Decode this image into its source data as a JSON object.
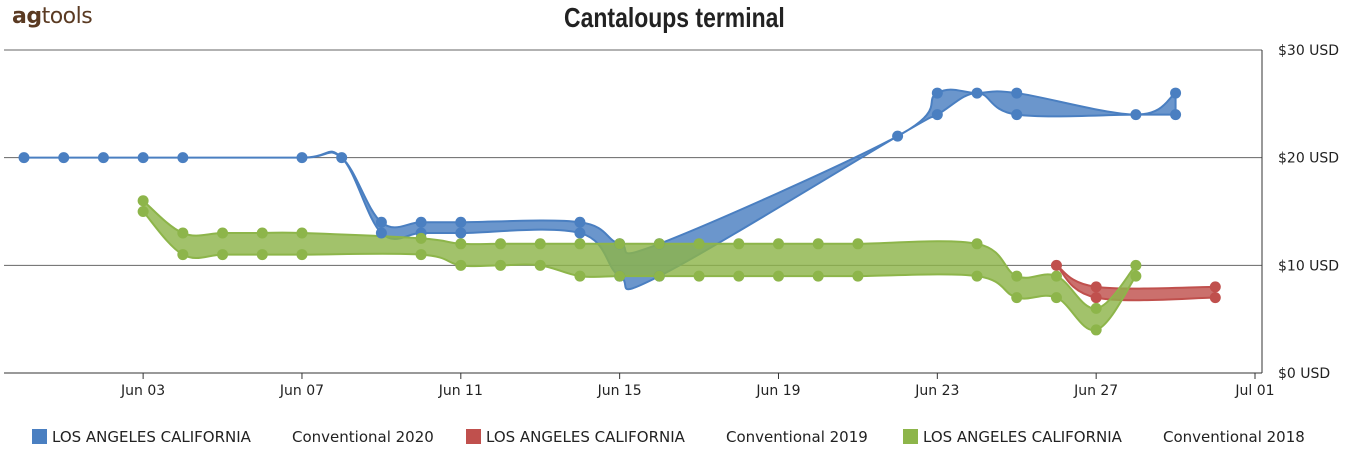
{
  "logo": {
    "ag": "ag",
    "tools": "tools"
  },
  "chart_data": {
    "type": "area",
    "title": "Cantaloups terminal",
    "ylim": [
      0,
      30
    ],
    "y_ticks": [
      0,
      10,
      20,
      30
    ],
    "y_tick_labels": [
      "$0 USD",
      "$10 USD",
      "$20 USD",
      "$30 USD"
    ],
    "x_range": [
      "2020-05-31",
      "2020-07-01"
    ],
    "x_ticks": [
      "2020-06-03",
      "2020-06-07",
      "2020-06-11",
      "2020-06-15",
      "2020-06-19",
      "2020-06-23",
      "2020-06-27",
      "2020-07-01"
    ],
    "x_tick_labels": [
      "Jun 03",
      "Jun 07",
      "Jun 11",
      "Jun 15",
      "Jun 19",
      "Jun 23",
      "Jun 27",
      "Jul 01"
    ],
    "grid": true,
    "legend_position": "bottom",
    "series": [
      {
        "label": "LOS ANGELES CALIFORNIA",
        "sub": "Conventional 2020",
        "color": "#4a7fc1",
        "points": [
          {
            "x": "2020-05-31",
            "low": 20,
            "high": 20
          },
          {
            "x": "2020-06-01",
            "low": 20,
            "high": 20
          },
          {
            "x": "2020-06-02",
            "low": 20,
            "high": 20
          },
          {
            "x": "2020-06-03",
            "low": 20,
            "high": 20
          },
          {
            "x": "2020-06-04",
            "low": 20,
            "high": 20
          },
          {
            "x": "2020-06-07",
            "low": 20,
            "high": 20
          },
          {
            "x": "2020-06-08",
            "low": 20,
            "high": 20
          },
          {
            "x": "2020-06-09",
            "low": 13,
            "high": 14
          },
          {
            "x": "2020-06-10",
            "low": 13,
            "high": 14
          },
          {
            "x": "2020-06-11",
            "low": 13,
            "high": 14
          },
          {
            "x": "2020-06-14",
            "low": 13,
            "high": 14
          },
          {
            "x": "2020-06-15",
            "low": 9,
            "high": 12
          },
          {
            "x": "2020-06-16",
            "low": 9,
            "high": 12
          },
          {
            "x": "2020-06-22",
            "low": 22,
            "high": 22
          },
          {
            "x": "2020-06-23",
            "low": 24,
            "high": 26
          },
          {
            "x": "2020-06-24",
            "low": 26,
            "high": 26
          },
          {
            "x": "2020-06-25",
            "low": 24,
            "high": 26
          },
          {
            "x": "2020-06-28",
            "low": 24,
            "high": 24
          },
          {
            "x": "2020-06-29",
            "low": 24,
            "high": 26
          }
        ]
      },
      {
        "label": "LOS ANGELES CALIFORNIA",
        "sub": "Conventional 2019",
        "color": "#c0504d",
        "points": [
          {
            "x": "2020-06-26",
            "low": 10,
            "high": 10
          },
          {
            "x": "2020-06-27",
            "low": 7,
            "high": 8
          },
          {
            "x": "2020-06-30",
            "low": 7,
            "high": 8
          }
        ]
      },
      {
        "label": "LOS ANGELES CALIFORNIA",
        "sub": "Conventional 2018",
        "color": "#8db54a",
        "points": [
          {
            "x": "2020-06-03",
            "low": 15,
            "high": 16
          },
          {
            "x": "2020-06-04",
            "low": 11,
            "high": 13
          },
          {
            "x": "2020-06-05",
            "low": 11,
            "high": 13
          },
          {
            "x": "2020-06-06",
            "low": 11,
            "high": 13
          },
          {
            "x": "2020-06-07",
            "low": 11,
            "high": 13
          },
          {
            "x": "2020-06-10",
            "low": 11,
            "high": 12.5
          },
          {
            "x": "2020-06-11",
            "low": 10,
            "high": 12
          },
          {
            "x": "2020-06-12",
            "low": 10,
            "high": 12
          },
          {
            "x": "2020-06-13",
            "low": 10,
            "high": 12
          },
          {
            "x": "2020-06-14",
            "low": 9,
            "high": 12
          },
          {
            "x": "2020-06-15",
            "low": 9,
            "high": 12
          },
          {
            "x": "2020-06-16",
            "low": 9,
            "high": 12
          },
          {
            "x": "2020-06-17",
            "low": 9,
            "high": 12
          },
          {
            "x": "2020-06-18",
            "low": 9,
            "high": 12
          },
          {
            "x": "2020-06-19",
            "low": 9,
            "high": 12
          },
          {
            "x": "2020-06-20",
            "low": 9,
            "high": 12
          },
          {
            "x": "2020-06-21",
            "low": 9,
            "high": 12
          },
          {
            "x": "2020-06-24",
            "low": 9,
            "high": 12
          },
          {
            "x": "2020-06-25",
            "low": 7,
            "high": 9
          },
          {
            "x": "2020-06-26",
            "low": 7,
            "high": 9
          },
          {
            "x": "2020-06-27",
            "low": 4,
            "high": 6
          },
          {
            "x": "2020-06-28",
            "low": 9,
            "high": 10
          }
        ]
      }
    ]
  }
}
